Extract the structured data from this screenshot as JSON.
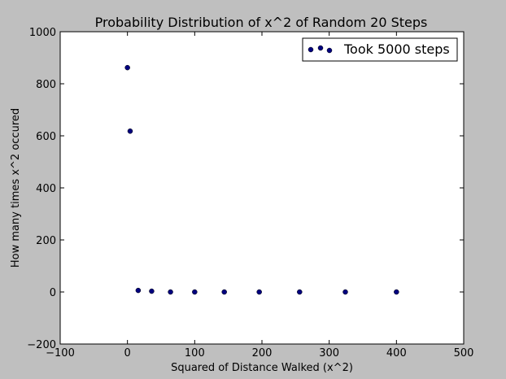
{
  "chart_data": {
    "type": "scatter",
    "title": "Probability Distribution of x^2 of Random 20 Steps",
    "xlabel": "Squared of Distance Walked (x^2)",
    "ylabel": "How many times x^2 occured",
    "xlim": [
      -100,
      500
    ],
    "ylim": [
      -200,
      1000
    ],
    "xticks": [
      -100,
      0,
      100,
      200,
      300,
      400,
      500
    ],
    "yticks": [
      -200,
      0,
      200,
      400,
      600,
      800,
      1000
    ],
    "grid": false,
    "legend_position": "top-right",
    "series": [
      {
        "name": "Took 5000 steps",
        "color": "#00007f",
        "points": [
          {
            "x": 0,
            "y": 862
          },
          {
            "x": 4,
            "y": 618
          },
          {
            "x": 16,
            "y": 6
          },
          {
            "x": 36,
            "y": 3
          },
          {
            "x": 64,
            "y": 0
          },
          {
            "x": 100,
            "y": 0
          },
          {
            "x": 144,
            "y": 0
          },
          {
            "x": 196,
            "y": 0
          },
          {
            "x": 256,
            "y": 0
          },
          {
            "x": 324,
            "y": 0
          },
          {
            "x": 400,
            "y": 0
          }
        ]
      }
    ]
  }
}
